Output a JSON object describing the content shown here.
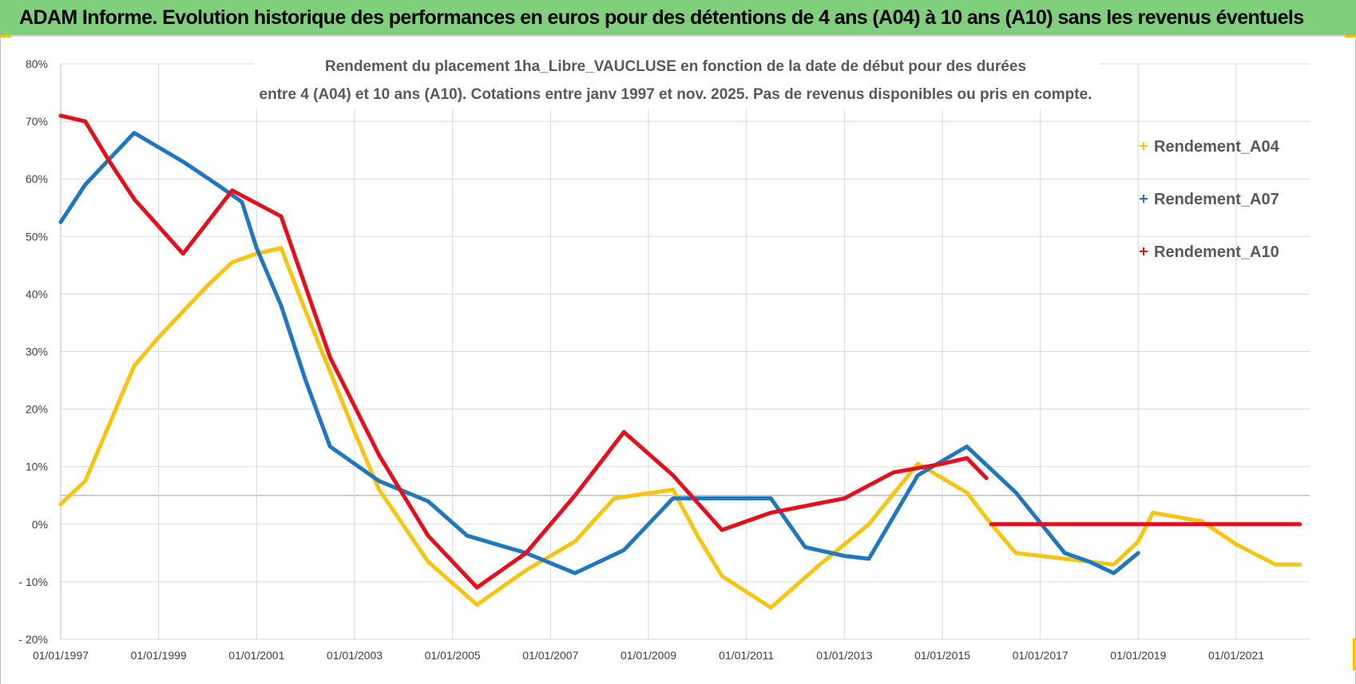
{
  "header": {
    "title": "ADAM Informe. Evolution historique des performances en euros pour des détentions de 4 ans (A04) à 10 ans (A10) sans les revenus éventuels"
  },
  "chart_data": {
    "type": "line",
    "title_line1": "Rendement du placement 1ha_Libre_VAUCLUSE en fonction de la date de début pour des durées",
    "title_line2": "entre 4 (A04) et 10 ans (A10). Cotations entre janv 1997 et nov. 2025. Pas de revenus disponibles ou pris en compte.",
    "xlabel": "",
    "ylabel": "",
    "xlim": [
      1997,
      2022.5
    ],
    "ylim": [
      -20,
      80
    ],
    "y_ticks": [
      80,
      70,
      60,
      50,
      40,
      30,
      20,
      10,
      0,
      -10,
      -20
    ],
    "y_tick_labels": [
      "80%",
      "70%",
      "60%",
      "50%",
      "40%",
      "30%",
      "20%",
      "10%",
      "0%",
      "- 10%",
      "- 20%"
    ],
    "x_ticks": [
      1997,
      1999,
      2001,
      2003,
      2005,
      2007,
      2009,
      2011,
      2013,
      2015,
      2017,
      2019,
      2021
    ],
    "x_tick_labels": [
      "01/01/1997",
      "01/01/1999",
      "01/01/2001",
      "01/01/2003",
      "01/01/2005",
      "01/01/2007",
      "01/01/2009",
      "01/01/2011",
      "01/01/2013",
      "01/01/2015",
      "01/01/2017",
      "01/01/2019",
      "01/01/2021"
    ],
    "grid": true,
    "legend_position": "top-right",
    "series": [
      {
        "name": "Rendement_A04",
        "color": "#f7c410",
        "points": [
          [
            1997.0,
            3.5
          ],
          [
            1997.5,
            7.5
          ],
          [
            1998.0,
            17.5
          ],
          [
            1998.5,
            27.5
          ],
          [
            1999.0,
            32.5
          ],
          [
            2000.0,
            41.5
          ],
          [
            2000.5,
            45.5
          ],
          [
            2001.0,
            47.0
          ],
          [
            2001.5,
            48.0
          ],
          [
            2002.0,
            37.0
          ],
          [
            2003.0,
            16.0
          ],
          [
            2003.5,
            6.0
          ],
          [
            2004.5,
            -6.5
          ],
          [
            2005.5,
            -14.0
          ],
          [
            2006.5,
            -8.0
          ],
          [
            2007.5,
            -3.0
          ],
          [
            2008.3,
            4.5
          ],
          [
            2009.5,
            6.0
          ],
          [
            2010.0,
            -2.0
          ],
          [
            2010.5,
            -9.0
          ],
          [
            2011.5,
            -14.5
          ],
          [
            2012.5,
            -7.0
          ],
          [
            2013.5,
            0.0
          ],
          [
            2014.5,
            10.5
          ],
          [
            2015.5,
            5.5
          ],
          [
            2016.0,
            0.0
          ],
          [
            2016.5,
            -5.0
          ],
          [
            2017.5,
            -6.0
          ],
          [
            2018.5,
            -7.0
          ],
          [
            2019.0,
            -3.0
          ],
          [
            2019.3,
            2.0
          ],
          [
            2020.3,
            0.5
          ],
          [
            2021.0,
            -3.5
          ],
          [
            2021.8,
            -7.0
          ],
          [
            2022.3,
            -7.0
          ]
        ]
      },
      {
        "name": "Rendement_A07",
        "color": "#1f77c0",
        "points": [
          [
            1997.0,
            52.5
          ],
          [
            1997.5,
            59.0
          ],
          [
            1998.5,
            68.0
          ],
          [
            1999.5,
            63.0
          ],
          [
            2000.2,
            59.0
          ],
          [
            2000.7,
            56.0
          ],
          [
            2001.0,
            48.0
          ],
          [
            2001.5,
            38.0
          ],
          [
            2002.0,
            25.0
          ],
          [
            2002.5,
            13.5
          ],
          [
            2003.5,
            7.5
          ],
          [
            2004.5,
            4.0
          ],
          [
            2005.3,
            -2.0
          ],
          [
            2006.5,
            -5.0
          ],
          [
            2007.5,
            -8.5
          ],
          [
            2008.5,
            -4.5
          ],
          [
            2009.5,
            4.5
          ],
          [
            2011.0,
            4.5
          ],
          [
            2011.5,
            4.5
          ],
          [
            2012.2,
            -4.0
          ],
          [
            2013.0,
            -5.5
          ],
          [
            2013.5,
            -6.0
          ],
          [
            2014.5,
            8.5
          ],
          [
            2015.5,
            13.5
          ],
          [
            2016.5,
            5.5
          ],
          [
            2017.5,
            -5.0
          ],
          [
            2018.0,
            -6.5
          ],
          [
            2018.5,
            -8.5
          ],
          [
            2019.0,
            -5.0
          ]
        ]
      },
      {
        "name": "Rendement_A10",
        "color": "#e4101c",
        "points": [
          [
            1997.0,
            71.0
          ],
          [
            1997.5,
            70.0
          ],
          [
            1998.0,
            63.0
          ],
          [
            1998.5,
            56.5
          ],
          [
            1999.5,
            47.0
          ],
          [
            2000.5,
            58.0
          ],
          [
            2001.5,
            53.5
          ],
          [
            2002.5,
            29.0
          ],
          [
            2003.5,
            12.0
          ],
          [
            2004.5,
            -2.0
          ],
          [
            2005.5,
            -11.0
          ],
          [
            2006.5,
            -5.0
          ],
          [
            2007.5,
            5.0
          ],
          [
            2008.5,
            16.0
          ],
          [
            2009.5,
            8.5
          ],
          [
            2010.5,
            -1.0
          ],
          [
            2011.5,
            2.0
          ],
          [
            2013.0,
            4.5
          ],
          [
            2014.0,
            9.0
          ],
          [
            2015.0,
            10.5
          ],
          [
            2015.5,
            11.5
          ],
          [
            2015.9,
            8.0
          ]
        ]
      },
      {
        "name": "Rendement_A10",
        "color": "#e4101c",
        "points": [
          [
            2016.0,
            0.0
          ],
          [
            2022.3,
            0.0
          ]
        ]
      }
    ],
    "legend": [
      "Rendement_A04",
      "Rendement_A07",
      "Rendement_A10"
    ]
  }
}
